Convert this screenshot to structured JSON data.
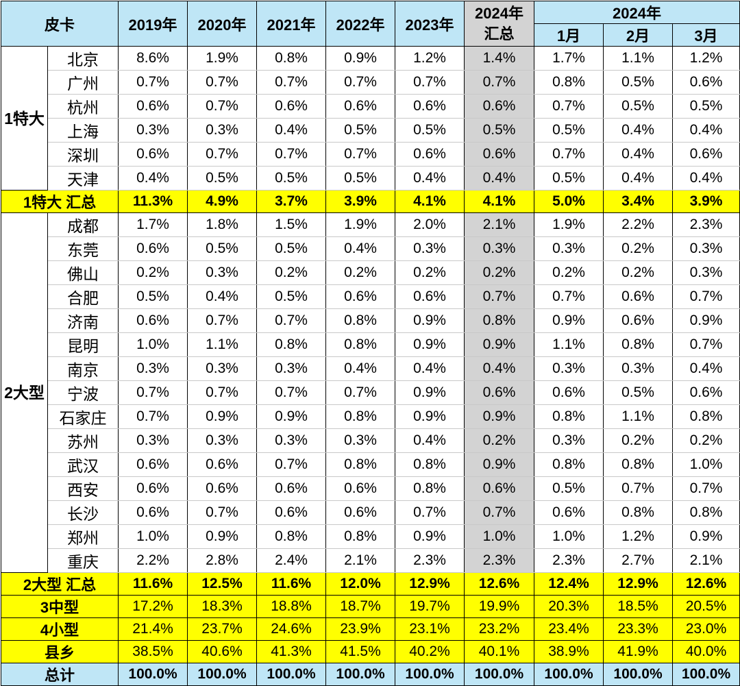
{
  "header": {
    "corner": "皮卡",
    "years": [
      "2019年",
      "2020年",
      "2021年",
      "2022年",
      "2023年"
    ],
    "total_2024_line1": "2024年",
    "total_2024_line2": "汇总",
    "group_2024": "2024年",
    "months": [
      "1月",
      "2月",
      "3月"
    ]
  },
  "groups": [
    {
      "label": "1特大",
      "rows": [
        {
          "city": "北京",
          "values": [
            "8.6%",
            "1.9%",
            "0.8%",
            "0.9%",
            "1.2%",
            "1.4%",
            "1.7%",
            "1.1%",
            "1.2%"
          ]
        },
        {
          "city": "广州",
          "values": [
            "0.7%",
            "0.7%",
            "0.7%",
            "0.7%",
            "0.7%",
            "0.7%",
            "0.8%",
            "0.5%",
            "0.6%"
          ]
        },
        {
          "city": "杭州",
          "values": [
            "0.6%",
            "0.7%",
            "0.6%",
            "0.6%",
            "0.6%",
            "0.6%",
            "0.7%",
            "0.5%",
            "0.5%"
          ]
        },
        {
          "city": "上海",
          "values": [
            "0.3%",
            "0.3%",
            "0.4%",
            "0.5%",
            "0.5%",
            "0.5%",
            "0.5%",
            "0.4%",
            "0.4%"
          ]
        },
        {
          "city": "深圳",
          "values": [
            "0.6%",
            "0.7%",
            "0.7%",
            "0.7%",
            "0.6%",
            "0.6%",
            "0.7%",
            "0.4%",
            "0.6%"
          ]
        },
        {
          "city": "天津",
          "values": [
            "0.4%",
            "0.5%",
            "0.5%",
            "0.5%",
            "0.4%",
            "0.4%",
            "0.5%",
            "0.4%",
            "0.4%"
          ]
        }
      ],
      "summary": {
        "label": "1特大 汇总",
        "values": [
          "11.3%",
          "4.9%",
          "3.7%",
          "3.9%",
          "4.1%",
          "4.1%",
          "5.0%",
          "3.4%",
          "3.9%"
        ]
      }
    },
    {
      "label": "2大型",
      "rows": [
        {
          "city": "成都",
          "values": [
            "1.7%",
            "1.8%",
            "1.5%",
            "1.9%",
            "2.0%",
            "2.1%",
            "1.9%",
            "2.2%",
            "2.3%"
          ]
        },
        {
          "city": "东莞",
          "values": [
            "0.6%",
            "0.5%",
            "0.5%",
            "0.4%",
            "0.3%",
            "0.3%",
            "0.3%",
            "0.2%",
            "0.3%"
          ]
        },
        {
          "city": "佛山",
          "values": [
            "0.2%",
            "0.3%",
            "0.2%",
            "0.2%",
            "0.2%",
            "0.2%",
            "0.2%",
            "0.2%",
            "0.3%"
          ]
        },
        {
          "city": "合肥",
          "values": [
            "0.5%",
            "0.4%",
            "0.5%",
            "0.6%",
            "0.6%",
            "0.7%",
            "0.7%",
            "0.6%",
            "0.7%"
          ]
        },
        {
          "city": "济南",
          "values": [
            "0.6%",
            "0.7%",
            "0.7%",
            "0.8%",
            "0.9%",
            "0.8%",
            "0.9%",
            "0.6%",
            "0.9%"
          ]
        },
        {
          "city": "昆明",
          "values": [
            "1.0%",
            "1.1%",
            "0.8%",
            "0.8%",
            "0.9%",
            "0.9%",
            "1.1%",
            "0.8%",
            "0.7%"
          ]
        },
        {
          "city": "南京",
          "values": [
            "0.3%",
            "0.3%",
            "0.3%",
            "0.4%",
            "0.4%",
            "0.4%",
            "0.3%",
            "0.3%",
            "0.4%"
          ]
        },
        {
          "city": "宁波",
          "values": [
            "0.7%",
            "0.7%",
            "0.7%",
            "0.7%",
            "0.9%",
            "0.6%",
            "0.6%",
            "0.5%",
            "0.6%"
          ]
        },
        {
          "city": "石家庄",
          "values": [
            "0.7%",
            "0.9%",
            "0.9%",
            "0.8%",
            "0.9%",
            "0.9%",
            "0.8%",
            "1.1%",
            "0.8%"
          ]
        },
        {
          "city": "苏州",
          "values": [
            "0.3%",
            "0.3%",
            "0.3%",
            "0.3%",
            "0.4%",
            "0.2%",
            "0.3%",
            "0.2%",
            "0.2%"
          ]
        },
        {
          "city": "武汉",
          "values": [
            "0.6%",
            "0.6%",
            "0.7%",
            "0.8%",
            "0.8%",
            "0.9%",
            "0.8%",
            "0.8%",
            "1.0%"
          ]
        },
        {
          "city": "西安",
          "values": [
            "0.6%",
            "0.6%",
            "0.6%",
            "0.6%",
            "0.8%",
            "0.6%",
            "0.5%",
            "0.7%",
            "0.7%"
          ]
        },
        {
          "city": "长沙",
          "values": [
            "0.6%",
            "0.7%",
            "0.6%",
            "0.6%",
            "0.7%",
            "0.7%",
            "0.6%",
            "0.8%",
            "0.8%"
          ]
        },
        {
          "city": "郑州",
          "values": [
            "1.0%",
            "0.9%",
            "0.8%",
            "0.8%",
            "0.9%",
            "1.0%",
            "1.0%",
            "1.2%",
            "0.9%"
          ]
        },
        {
          "city": "重庆",
          "values": [
            "2.2%",
            "2.8%",
            "2.4%",
            "2.1%",
            "2.3%",
            "2.3%",
            "2.3%",
            "2.7%",
            "2.1%"
          ]
        }
      ],
      "summary": {
        "label": "2大型 汇总",
        "values": [
          "11.6%",
          "12.5%",
          "11.6%",
          "12.0%",
          "12.9%",
          "12.6%",
          "12.4%",
          "12.9%",
          "12.6%"
        ]
      }
    }
  ],
  "other_rows": [
    {
      "label": "3中型",
      "values": [
        "17.2%",
        "18.3%",
        "18.8%",
        "18.7%",
        "19.7%",
        "19.9%",
        "20.3%",
        "18.5%",
        "20.5%"
      ]
    },
    {
      "label": "4小型",
      "values": [
        "21.4%",
        "23.7%",
        "24.6%",
        "23.9%",
        "23.1%",
        "23.2%",
        "23.4%",
        "23.3%",
        "23.0%"
      ]
    },
    {
      "label": "县乡",
      "values": [
        "38.5%",
        "40.6%",
        "41.3%",
        "41.5%",
        "40.2%",
        "40.1%",
        "38.9%",
        "41.9%",
        "40.0%"
      ]
    }
  ],
  "total": {
    "label": "总计",
    "values": [
      "100.0%",
      "100.0%",
      "100.0%",
      "100.0%",
      "100.0%",
      "100.0%",
      "100.0%",
      "100.0%",
      "100.0%"
    ]
  },
  "colors": {
    "header_bg": "#bfe6f6",
    "highlight_2024": "#d3d3d3",
    "summary_bg": "#ffff00"
  }
}
